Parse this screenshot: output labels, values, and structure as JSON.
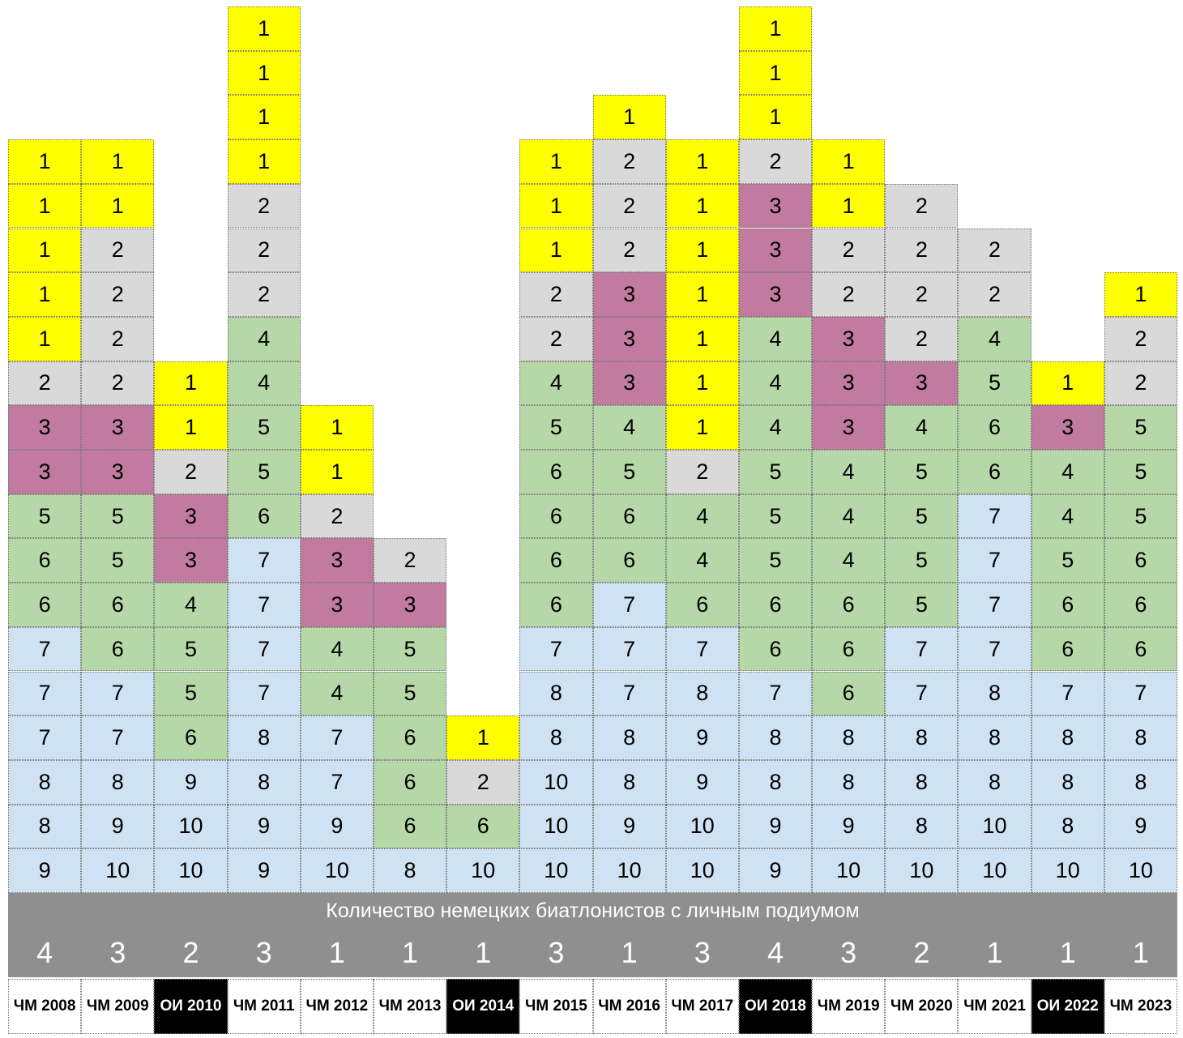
{
  "colors": {
    "1": "#ffff00",
    "2": "#d9d9d9",
    "3": "#c27ba0",
    "4": "#b6d7a8",
    "5": "#b6d7a8",
    "6": "#b6d7a8",
    "7": "#cfe2f3",
    "8": "#cfe2f3",
    "9": "#cfe2f3",
    "10": "#cfe2f3",
    "band": "#8f8f8f",
    "olympic_bg": "#000000",
    "olympic_text": "#ffffff",
    "wc_bg": "#ffffff",
    "wc_text": "#000000"
  },
  "chart_data": {
    "type": "table",
    "title": "",
    "summary_label": "Количество немецких биатлонистов с личным подиумом",
    "columns": [
      {
        "label": "ЧМ 2008",
        "olympic": false,
        "podium_count": "4",
        "places": [
          9,
          8,
          8,
          7,
          7,
          7,
          6,
          6,
          5,
          3,
          3,
          2,
          1,
          1,
          1,
          1,
          1
        ]
      },
      {
        "label": "ЧМ 2009",
        "olympic": false,
        "podium_count": "3",
        "places": [
          10,
          9,
          8,
          7,
          7,
          6,
          6,
          5,
          5,
          3,
          3,
          2,
          2,
          2,
          2,
          1,
          1
        ]
      },
      {
        "label": "ОИ 2010",
        "olympic": true,
        "podium_count": "2",
        "places": [
          10,
          10,
          9,
          6,
          5,
          5,
          4,
          3,
          3,
          2,
          1,
          1
        ]
      },
      {
        "label": "ЧМ 2011",
        "olympic": false,
        "podium_count": "3",
        "places": [
          9,
          9,
          8,
          8,
          7,
          7,
          7,
          7,
          6,
          5,
          5,
          4,
          4,
          2,
          2,
          2,
          1,
          1,
          1,
          1
        ]
      },
      {
        "label": "ЧМ 2012",
        "olympic": false,
        "podium_count": "1",
        "places": [
          10,
          9,
          7,
          7,
          4,
          4,
          3,
          3,
          2,
          1,
          1
        ]
      },
      {
        "label": "ЧМ 2013",
        "olympic": false,
        "podium_count": "1",
        "places": [
          8,
          6,
          6,
          6,
          5,
          5,
          3,
          2
        ]
      },
      {
        "label": "ОИ 2014",
        "olympic": true,
        "podium_count": "1",
        "places": [
          10,
          6,
          2,
          1
        ]
      },
      {
        "label": "ЧМ 2015",
        "olympic": false,
        "podium_count": "3",
        "places": [
          10,
          10,
          10,
          8,
          8,
          7,
          6,
          6,
          6,
          6,
          5,
          4,
          2,
          2,
          1,
          1,
          1
        ]
      },
      {
        "label": "ЧМ 2016",
        "olympic": false,
        "podium_count": "1",
        "places": [
          10,
          9,
          8,
          8,
          7,
          7,
          7,
          6,
          6,
          5,
          4,
          3,
          3,
          3,
          2,
          2,
          2,
          1
        ]
      },
      {
        "label": "ЧМ 2017",
        "olympic": false,
        "podium_count": "3",
        "places": [
          10,
          10,
          9,
          9,
          8,
          7,
          6,
          4,
          4,
          2,
          1,
          1,
          1,
          1,
          1,
          1,
          1
        ]
      },
      {
        "label": "ОИ 2018",
        "olympic": true,
        "podium_count": "4",
        "places": [
          9,
          9,
          8,
          8,
          7,
          6,
          6,
          5,
          5,
          5,
          4,
          4,
          4,
          3,
          3,
          3,
          2,
          1,
          1,
          1
        ]
      },
      {
        "label": "ЧМ 2019",
        "olympic": false,
        "podium_count": "3",
        "places": [
          10,
          9,
          8,
          8,
          6,
          6,
          6,
          4,
          4,
          4,
          3,
          3,
          3,
          2,
          2,
          1,
          1
        ]
      },
      {
        "label": "ЧМ 2020",
        "olympic": false,
        "podium_count": "2",
        "places": [
          10,
          8,
          8,
          8,
          7,
          7,
          5,
          5,
          5,
          5,
          4,
          3,
          2,
          2,
          2,
          2
        ]
      },
      {
        "label": "ЧМ 2021",
        "olympic": false,
        "podium_count": "1",
        "places": [
          10,
          10,
          8,
          8,
          8,
          7,
          7,
          7,
          7,
          6,
          6,
          5,
          4,
          2,
          2
        ]
      },
      {
        "label": "ОИ 2022",
        "olympic": true,
        "podium_count": "1",
        "places": [
          10,
          8,
          8,
          8,
          7,
          6,
          6,
          5,
          4,
          4,
          3,
          1
        ]
      },
      {
        "label": "ЧМ 2023",
        "olympic": false,
        "podium_count": "1",
        "places": [
          10,
          9,
          8,
          8,
          7,
          6,
          6,
          6,
          5,
          5,
          5,
          2,
          2,
          1
        ]
      }
    ]
  }
}
